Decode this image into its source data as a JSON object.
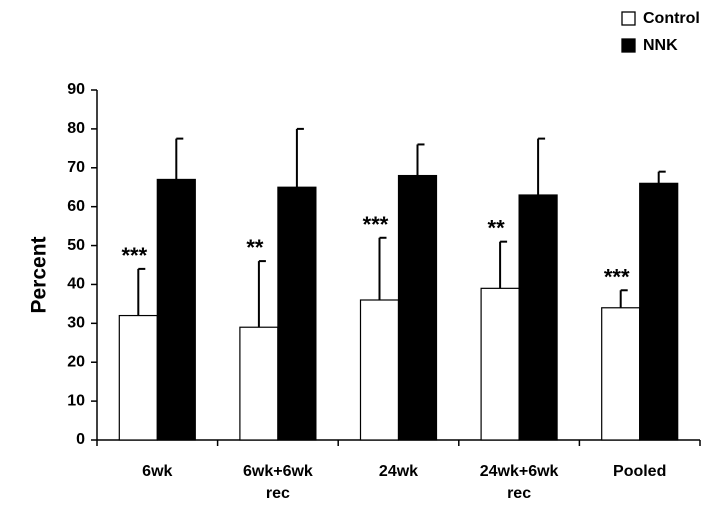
{
  "chart_data": {
    "type": "bar",
    "title": "",
    "xlabel": "",
    "ylabel": "Percent",
    "ylim": [
      0,
      90
    ],
    "yticks": [
      0,
      10,
      20,
      30,
      40,
      50,
      60,
      70,
      80,
      90
    ],
    "categories": [
      [
        "6wk"
      ],
      [
        "6wk+6wk",
        "rec"
      ],
      [
        "24wk"
      ],
      [
        "24wk+6wk",
        "rec"
      ],
      [
        "Pooled"
      ]
    ],
    "series": [
      {
        "name": "Control",
        "fill": "#ffffff",
        "stroke": "#000000",
        "values": [
          32,
          29,
          36,
          39,
          34
        ],
        "errors": [
          12,
          17,
          16,
          12,
          4.5
        ]
      },
      {
        "name": "NNK",
        "fill": "#000000",
        "stroke": "#000000",
        "values": [
          67,
          65,
          68,
          63,
          66
        ],
        "errors": [
          10.5,
          15,
          8,
          14.5,
          3
        ]
      }
    ],
    "significance": [
      "***",
      "**",
      "***",
      "**",
      "***"
    ],
    "legend_position": "top-right",
    "grid": false
  }
}
